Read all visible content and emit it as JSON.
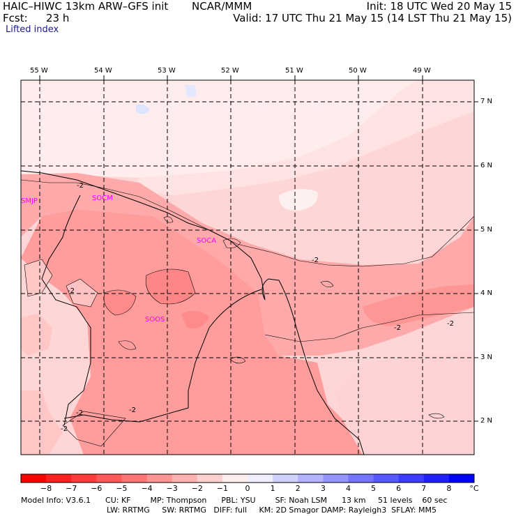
{
  "header": {
    "model_title": "HAIC–HIWC 13km ARW–GFS init",
    "center": "NCAR/MMM",
    "fcst_label": "Fcst:",
    "fcst_value": "23 h",
    "init": "Init: 18 UTC Wed 20 May 15",
    "valid": "Valid: 17 UTC Thu 21 May 15 (14 LST Thu 21 May 15)",
    "field": "Lifted index"
  },
  "map": {
    "lon_labels": [
      "55 W",
      "54 W",
      "53 W",
      "52 W",
      "51 W",
      "50 W",
      "49 W"
    ],
    "lat_labels": [
      "7 N",
      "6 N",
      "5 N",
      "4 N",
      "3 N",
      "2 N"
    ],
    "stations": [
      "SMJP",
      "SOCM",
      "SOCA",
      "SOOS"
    ],
    "contour_labels": [
      "-2",
      "-2",
      "-2",
      "-2",
      "-2",
      "-2",
      "-2",
      "-2"
    ]
  },
  "colorbar": {
    "ticks": [
      "−8",
      "−7",
      "−6",
      "−5",
      "−4",
      "−3",
      "−2",
      "−1",
      "0",
      "1",
      "2",
      "3",
      "4",
      "5",
      "6",
      "7",
      "8"
    ],
    "unit": "°C",
    "colors": [
      "#ff0000",
      "#ff2020",
      "#ff3c3c",
      "#ff5858",
      "#ff7474",
      "#ff9494",
      "#ffb2b2",
      "#ffd0d0",
      "#ffeeee",
      "#eeeeff",
      "#d0d0ff",
      "#b2b2ff",
      "#9494ff",
      "#7474ff",
      "#5858ff",
      "#3c3cff",
      "#2020ff",
      "#0000ff"
    ]
  },
  "footer": {
    "line1": "Model Info: V3.6.1      CU: KF        MP: Thompson      PBL: YSU        SF: Noah LSM      13 km     51 levels    60 sec",
    "line2": "LW: RRTMG     SW: RRTMG   DIFF: full     KM: 2D Smagor DAMP: Rayleigh3  SFLAY: MM5"
  }
}
